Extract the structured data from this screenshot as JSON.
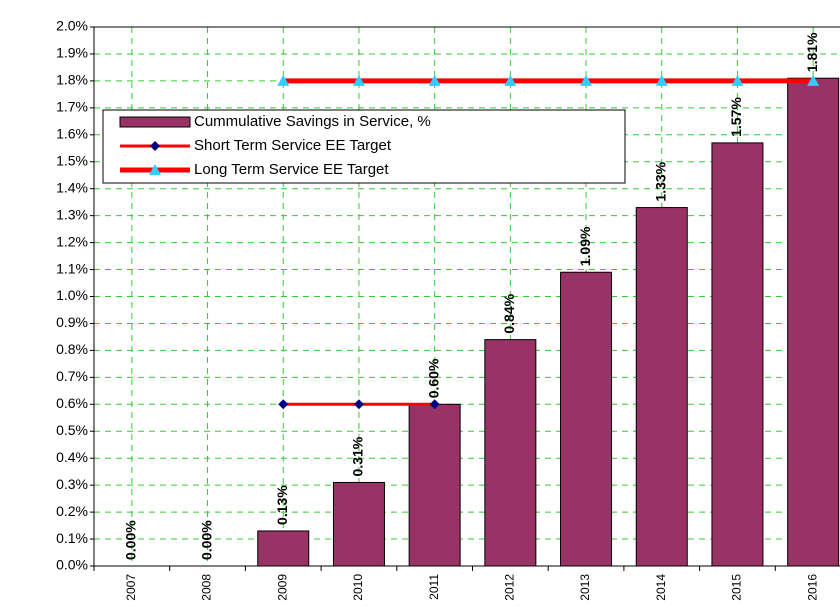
{
  "chart_data": {
    "type": "bar",
    "categories": [
      "2007",
      "2008",
      "2009",
      "2010",
      "2011",
      "2012",
      "2013",
      "2014",
      "2015",
      "2016"
    ],
    "series": [
      {
        "name": "Cummulative Savings in Service, %",
        "type": "bar",
        "color": "#993366",
        "values": [
          0,
          0,
          0.13,
          0.31,
          0.6,
          0.84,
          1.09,
          1.33,
          1.57,
          1.81
        ],
        "value_labels": [
          "0.00%",
          "0.00%",
          "0.13%",
          "0.31%",
          "0.60%",
          "0.84%",
          "1.09%",
          "1.33%",
          "1.57%",
          "1.81%"
        ]
      },
      {
        "name": "Short Term Service EE Target",
        "type": "line",
        "color": "#ff0000",
        "marker": "diamond",
        "marker_color": "#000080",
        "values": [
          null,
          null,
          0.6,
          0.6,
          0.6,
          null,
          null,
          null,
          null,
          null
        ]
      },
      {
        "name": "Long Term Service EE Target",
        "type": "line",
        "color": "#ff0000",
        "marker": "triangle",
        "marker_color": "#33ccff",
        "values": [
          null,
          null,
          1.8,
          1.8,
          1.8,
          1.8,
          1.8,
          1.8,
          1.8,
          1.8
        ]
      }
    ],
    "ylim": [
      0,
      2.0
    ],
    "yticks": [
      {
        "value": 0,
        "label": "0.0%"
      },
      {
        "value": 0.1,
        "label": "0.1%"
      },
      {
        "value": 0.2,
        "label": "0.2%"
      },
      {
        "value": 0.3,
        "label": "0.3%"
      },
      {
        "value": 0.4,
        "label": "0.4%"
      },
      {
        "value": 0.5,
        "label": "0.5%"
      },
      {
        "value": 0.6,
        "label": "0.6%"
      },
      {
        "value": 0.7,
        "label": "0.7%"
      },
      {
        "value": 0.8,
        "label": "0.8%"
      },
      {
        "value": 0.9,
        "label": "0.9%"
      },
      {
        "value": 1.0,
        "label": "1.0%"
      },
      {
        "value": 1.1,
        "label": "1.1%"
      },
      {
        "value": 1.2,
        "label": "1.2%"
      },
      {
        "value": 1.3,
        "label": "1.3%"
      },
      {
        "value": 1.4,
        "label": "1.4%"
      },
      {
        "value": 1.5,
        "label": "1.5%"
      },
      {
        "value": 1.6,
        "label": "1.6%"
      },
      {
        "value": 1.7,
        "label": "1.7%"
      },
      {
        "value": 1.8,
        "label": "1.8%"
      },
      {
        "value": 1.9,
        "label": "1.9%"
      },
      {
        "value": 2.0,
        "label": "2.0%"
      }
    ],
    "grid": true,
    "grid_color": "#33cc33"
  }
}
